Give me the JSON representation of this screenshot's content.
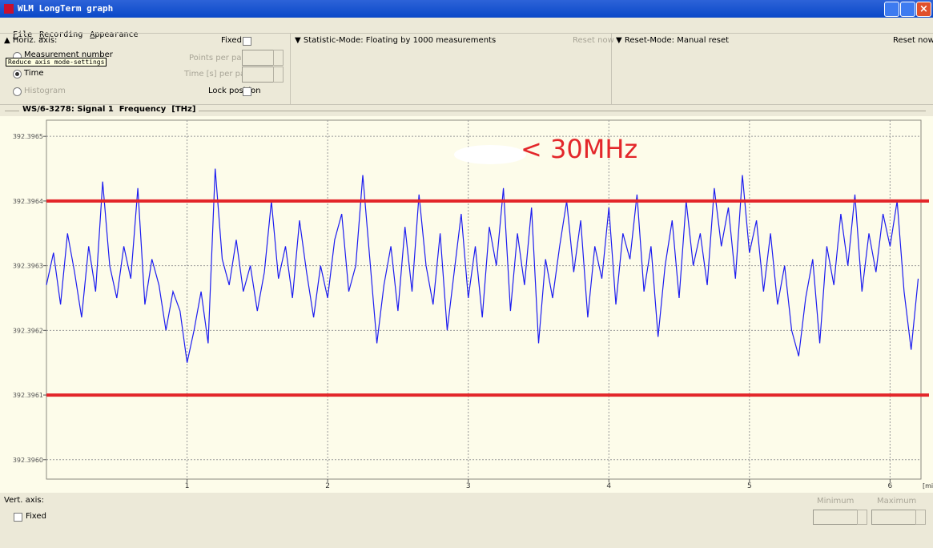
{
  "window": {
    "title": "WLM LongTerm graph"
  },
  "menu": [
    "File",
    "Recording",
    "Appearance"
  ],
  "horiz_panel": {
    "header": "Horiz. axis:",
    "options": [
      "Measurement number",
      "Time",
      "Histogram"
    ],
    "tooltip": "Reduce axis mode-settings",
    "fixed": "Fixed",
    "points_per_page": "Points per page",
    "time_per_page": "Time [s] per page",
    "lock_position": "Lock position"
  },
  "statistic_panel": {
    "mode": "Statistic-Mode: Floating by 1000 measurements",
    "reset": "Reset now"
  },
  "reset_panel": {
    "mode": "Reset-Mode: Manual reset",
    "reset": "Reset now"
  },
  "chart_data": {
    "type": "line",
    "title": "WS/6-3278: Signal 1  Frequency  [THz]",
    "x_label": "[min]",
    "annotation": "< 30MHz",
    "xlim": [
      0,
      6.22
    ],
    "ylim": [
      392.39597,
      392.396525
    ],
    "xticks": [
      1,
      2,
      3,
      4,
      5,
      6
    ],
    "yticks": [
      392.3965,
      392.3964,
      392.3963,
      392.3962,
      392.3961,
      {
        "value": 392.396,
        "label": "392.3960"
      }
    ],
    "grid": true,
    "hlines": {
      "values": [
        392.3964,
        392.3961
      ],
      "color": "#e3262a"
    },
    "x": [
      0,
      0.05,
      0.1,
      0.15,
      0.2,
      0.25,
      0.3,
      0.35,
      0.4,
      0.45,
      0.5,
      0.55,
      0.6,
      0.65,
      0.7,
      0.75,
      0.8,
      0.85,
      0.9,
      0.95,
      1,
      1.05,
      1.1,
      1.15,
      1.2,
      1.25,
      1.3,
      1.35,
      1.4,
      1.45,
      1.5,
      1.55,
      1.6,
      1.65,
      1.7,
      1.75,
      1.8,
      1.85,
      1.9,
      1.95,
      2,
      2.05,
      2.1,
      2.15,
      2.2,
      2.25,
      2.3,
      2.35,
      2.4,
      2.45,
      2.5,
      2.55,
      2.6,
      2.65,
      2.7,
      2.75,
      2.8,
      2.85,
      2.9,
      2.95,
      3,
      3.05,
      3.1,
      3.15,
      3.2,
      3.25,
      3.3,
      3.35,
      3.4,
      3.45,
      3.5,
      3.55,
      3.6,
      3.65,
      3.7,
      3.75,
      3.8,
      3.85,
      3.9,
      3.95,
      4,
      4.05,
      4.1,
      4.15,
      4.2,
      4.25,
      4.3,
      4.35,
      4.4,
      4.45,
      4.5,
      4.55,
      4.6,
      4.65,
      4.7,
      4.75,
      4.8,
      4.85,
      4.9,
      4.95,
      5,
      5.05,
      5.1,
      5.15,
      5.2,
      5.25,
      5.3,
      5.35,
      5.4,
      5.45,
      5.5,
      5.55,
      5.6,
      5.65,
      5.7,
      5.75,
      5.8,
      5.85,
      5.9,
      5.95,
      6,
      6.05,
      6.1,
      6.15,
      6.2
    ],
    "series": [
      {
        "color": "#1c1cf0",
        "values": [
          392.39627,
          392.39632,
          392.39624,
          392.39635,
          392.39629,
          392.39622,
          392.39633,
          392.39626,
          392.39643,
          392.3963,
          392.39625,
          392.39633,
          392.39628,
          392.39642,
          392.39624,
          392.39631,
          392.39627,
          392.3962,
          392.39626,
          392.39623,
          392.39615,
          392.3962,
          392.39626,
          392.39618,
          392.39645,
          392.39631,
          392.39627,
          392.39634,
          392.39626,
          392.3963,
          392.39623,
          392.39629,
          392.3964,
          392.39628,
          392.39633,
          392.39625,
          392.39637,
          392.39629,
          392.39622,
          392.3963,
          392.39625,
          392.39634,
          392.39638,
          392.39626,
          392.3963,
          392.39644,
          392.39631,
          392.39618,
          392.39627,
          392.39633,
          392.39623,
          392.39636,
          392.39626,
          392.39641,
          392.3963,
          392.39624,
          392.39635,
          392.3962,
          392.39629,
          392.39638,
          392.39625,
          392.39633,
          392.39622,
          392.39636,
          392.3963,
          392.39642,
          392.39623,
          392.39635,
          392.39627,
          392.39639,
          392.39618,
          392.39631,
          392.39625,
          392.39633,
          392.3964,
          392.39629,
          392.39637,
          392.39622,
          392.39633,
          392.39628,
          392.39639,
          392.39624,
          392.39635,
          392.39631,
          392.39641,
          392.39626,
          392.39633,
          392.39619,
          392.3963,
          392.39637,
          392.39625,
          392.3964,
          392.3963,
          392.39635,
          392.39627,
          392.39642,
          392.39633,
          392.39639,
          392.39628,
          392.39644,
          392.39632,
          392.39637,
          392.39626,
          392.39635,
          392.39624,
          392.3963,
          392.3962,
          392.39616,
          392.39625,
          392.39631,
          392.39618,
          392.39633,
          392.39627,
          392.39638,
          392.3963,
          392.39641,
          392.39626,
          392.39635,
          392.39629,
          392.39638,
          392.39633,
          392.3964,
          392.39626,
          392.39617,
          392.39628
        ]
      }
    ]
  },
  "vert_panel": {
    "header": "Vert. axis:",
    "fixed": "Fixed",
    "minimum": "Minimum",
    "maximum": "Maximum"
  }
}
